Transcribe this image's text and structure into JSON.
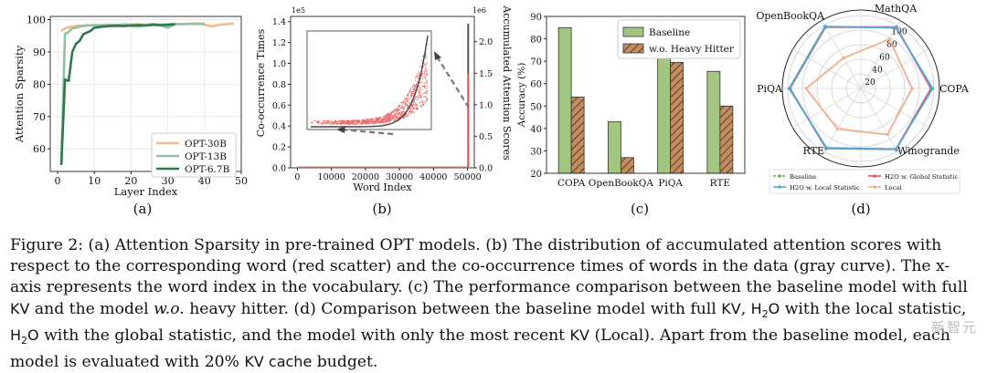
{
  "caption": {
    "p1": "Figure 2: (a) Attention Sparsity in pre-trained OPT models. (b) The distribution of accumulated attention scores with respect to the corresponding word (red scatter) and the co-occurrence times of words in the data (gray curve). The x-axis represents the word index in the vocabulary. (c) The performance comparison between the baseline model with full ",
    "kv1": "KV",
    "p2": " and the model ",
    "wo": "w.o.",
    "p3": " heavy hitter. (d) Comparison between the baseline model with full ",
    "kv2": "KV",
    "p4": ", ",
    "h2o1": "H",
    "h2o1sub": "2",
    "h2o1b": "O",
    "p5": " with the local statistic, ",
    "h2o2": "H",
    "h2o2sub": "2",
    "h2o2b": "O",
    "p6": " with the global statistic, and the model with only the most recent ",
    "kv3": "KV",
    "p7": " (Local). Apart from the baseline model, each model is evaluated with 20% ",
    "kvcache": "KV cache",
    "p8": " budget."
  },
  "watermark": "新智元",
  "chart_data": [
    {
      "panel": "(a)",
      "type": "line",
      "xlabel": "Layer Index",
      "ylabel": "Attention Sparsity",
      "xlim": [
        -2,
        50
      ],
      "ylim": [
        53,
        101
      ],
      "xticks": [
        0,
        10,
        20,
        30,
        40,
        50
      ],
      "yticks": [
        60,
        70,
        80,
        90,
        100
      ],
      "legend_position": "lower-right",
      "series": [
        {
          "name": "OPT-30B",
          "color": "#f5b98c",
          "x": [
            1,
            2,
            3,
            4,
            5,
            6,
            7,
            8,
            10,
            12,
            14,
            16,
            18,
            20,
            22,
            24,
            26,
            28,
            30,
            32,
            34,
            36,
            38,
            40,
            42,
            44,
            46,
            48
          ],
          "y": [
            96.5,
            97.3,
            97.6,
            97.9,
            98.1,
            98.2,
            97.9,
            98.3,
            98.2,
            98.4,
            98.4,
            98.2,
            98.6,
            98.5,
            98.6,
            98.4,
            98.7,
            98.5,
            98.6,
            98.7,
            98.6,
            98.7,
            98.9,
            98.5,
            97.9,
            98.4,
            98.6,
            98.8
          ]
        },
        {
          "name": "OPT-13B",
          "color": "#8dc3a0",
          "x": [
            1,
            2,
            3,
            4,
            5,
            6,
            7,
            8,
            10,
            12,
            14,
            16,
            18,
            20,
            22,
            24,
            26,
            28,
            30,
            32,
            34,
            36,
            38,
            40
          ],
          "y": [
            56,
            95.5,
            96.2,
            97.3,
            97.5,
            97.9,
            98.1,
            98.2,
            98.3,
            98.2,
            98.3,
            98.4,
            98.4,
            98.1,
            97.8,
            98.3,
            98.5,
            98.3,
            97.5,
            98.6,
            98.6,
            98.7,
            98.6,
            98.8
          ]
        },
        {
          "name": "OPT-6.7B",
          "color": "#2e7a4e",
          "x": [
            1,
            2,
            3,
            4,
            5,
            6,
            7,
            8,
            9,
            10,
            12,
            14,
            16,
            18,
            20,
            22,
            24,
            26,
            28,
            30,
            32
          ],
          "y": [
            55,
            81.5,
            81,
            90,
            92.5,
            93.5,
            95.5,
            96,
            96.5,
            97.5,
            97.8,
            98,
            98.1,
            98,
            98.2,
            98.3,
            98.2,
            98.4,
            98.3,
            98.4,
            98.6
          ]
        }
      ]
    },
    {
      "panel": "(b)",
      "type": "scatter",
      "xlabel": "Word Index",
      "ylabel": "Co-occurrence Times",
      "y2label": "Accumulated Attention Scores",
      "xlim": [
        -2000,
        52000
      ],
      "ylim": [
        0,
        1.45
      ],
      "ylim2": [
        0,
        2.4
      ],
      "xticks": [
        0,
        10000,
        20000,
        30000,
        40000,
        50000
      ],
      "yticks": [
        0.0,
        0.2,
        0.4,
        0.6,
        0.8,
        1.0,
        1.2,
        1.4
      ],
      "y2ticks": [
        0.0,
        0.5,
        1.0,
        1.5,
        2.0
      ],
      "y_exponent": "1e5",
      "y2_exponent": "1e6"
    },
    {
      "panel": "(c)",
      "type": "bar",
      "ylabel": "Accuracy (%)",
      "ylim": [
        20,
        90
      ],
      "yticks": [
        20,
        30,
        40,
        50,
        60,
        70,
        80,
        90
      ],
      "categories": [
        "COPA",
        "OpenBookQA",
        "PiQA",
        "RTE"
      ],
      "legend_position": "top-right",
      "series": [
        {
          "name": "Baseline",
          "color": "#a3c582",
          "values": [
            85,
            43,
            79,
            65.5
          ]
        },
        {
          "name": "w.o. Heavy Hitter",
          "color": "#c48d60",
          "values": [
            54,
            27,
            69.5,
            50
          ]
        }
      ]
    },
    {
      "panel": "(d)",
      "type": "radar",
      "axes": [
        "MathQA",
        "COPA",
        "Winogrande",
        "RTE",
        "PiQA",
        "OpenBookQA"
      ],
      "radial_ticks": [
        20,
        40,
        60,
        80,
        100
      ],
      "legend_position": "bottom",
      "series": [
        {
          "name": "Baseline",
          "color": "#6aa84f",
          "values": [
            97,
            97,
            97,
            95,
            97,
            97
          ]
        },
        {
          "name": "H2O w. Local Statistic",
          "color": "#5aa7d6",
          "values": [
            96,
            98,
            96,
            94,
            98,
            98
          ]
        },
        {
          "name": "H2O w. Global Statistic",
          "color": "#e8506b",
          "values": [
            97,
            96,
            96,
            95,
            97,
            97
          ]
        },
        {
          "name": "Local",
          "color": "#f0b493",
          "values": [
            78,
            70,
            73,
            64,
            75,
            48
          ]
        }
      ]
    }
  ]
}
